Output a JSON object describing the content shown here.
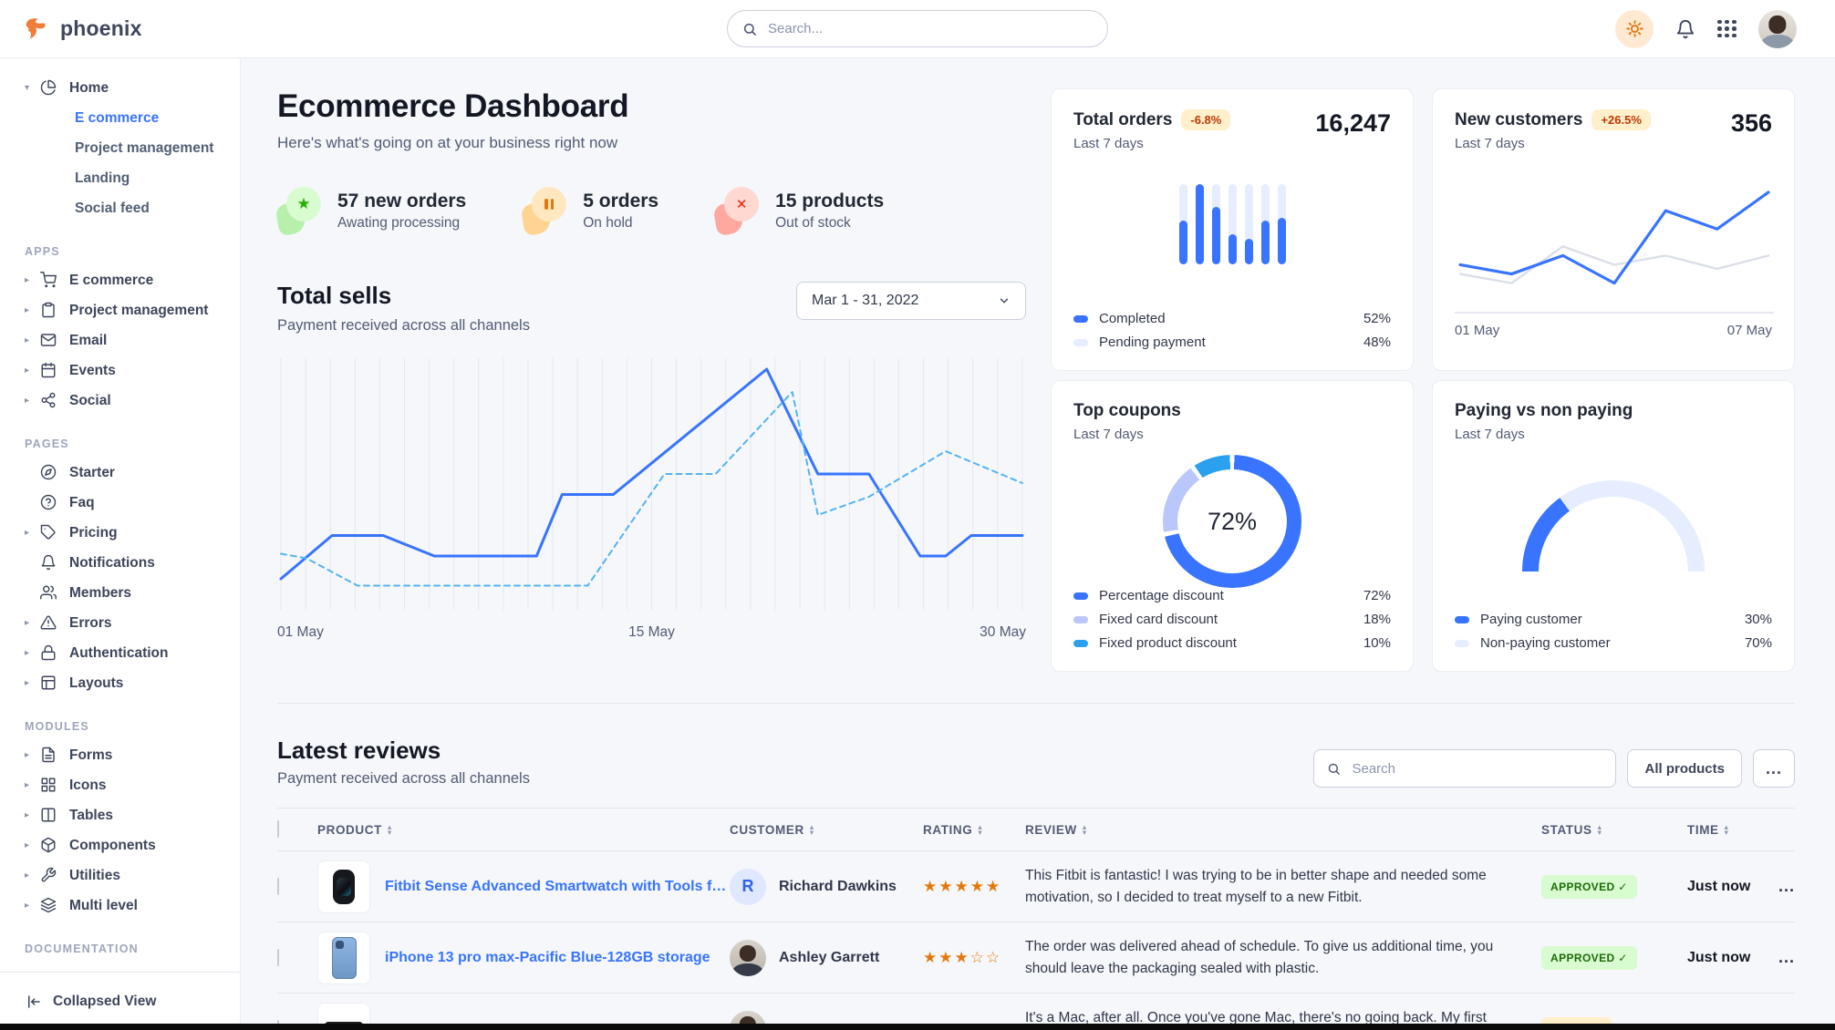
{
  "navbar": {
    "brand": "phoenix",
    "search_placeholder": "Search..."
  },
  "sidebar": {
    "footer_label": "Collapsed View",
    "sections": [
      {
        "label": "",
        "items": [
          {
            "label": "Home",
            "icon": "pie-chart",
            "caret": "down",
            "children": [
              {
                "label": "E commerce",
                "active": true
              },
              {
                "label": "Project management",
                "active": false
              },
              {
                "label": "Landing",
                "active": false
              },
              {
                "label": "Social feed",
                "active": false
              }
            ]
          }
        ]
      },
      {
        "label": "APPS",
        "items": [
          {
            "label": "E commerce",
            "icon": "shopping-cart",
            "caret": "right"
          },
          {
            "label": "Project management",
            "icon": "clipboard",
            "caret": "right"
          },
          {
            "label": "Email",
            "icon": "mail",
            "caret": "right"
          },
          {
            "label": "Events",
            "icon": "calendar",
            "caret": "right"
          },
          {
            "label": "Social",
            "icon": "share-2",
            "caret": "right"
          }
        ]
      },
      {
        "label": "PAGES",
        "items": [
          {
            "label": "Starter",
            "icon": "compass"
          },
          {
            "label": "Faq",
            "icon": "help-circle"
          },
          {
            "label": "Pricing",
            "icon": "tag",
            "caret": "right"
          },
          {
            "label": "Notifications",
            "icon": "bell"
          },
          {
            "label": "Members",
            "icon": "users"
          },
          {
            "label": "Errors",
            "icon": "alert-triangle",
            "caret": "right"
          },
          {
            "label": "Authentication",
            "icon": "lock",
            "caret": "right"
          },
          {
            "label": "Layouts",
            "icon": "layout",
            "caret": "right"
          }
        ]
      },
      {
        "label": "MODULES",
        "items": [
          {
            "label": "Forms",
            "icon": "file-text",
            "caret": "right"
          },
          {
            "label": "Icons",
            "icon": "grid",
            "caret": "right"
          },
          {
            "label": "Tables",
            "icon": "columns",
            "caret": "right"
          },
          {
            "label": "Components",
            "icon": "package",
            "caret": "right"
          },
          {
            "label": "Utilities",
            "icon": "tool",
            "caret": "right"
          },
          {
            "label": "Multi level",
            "icon": "layers",
            "caret": "right"
          }
        ]
      },
      {
        "label": "DOCUMENTATION",
        "items": []
      }
    ]
  },
  "page": {
    "title": "Ecommerce Dashboard",
    "subtitle": "Here's what's going on at your business right now"
  },
  "stats": [
    {
      "title": "57 new orders",
      "subtitle": "Awating processing",
      "icon": "star",
      "tone": "success"
    },
    {
      "title": "5 orders",
      "subtitle": "On hold",
      "icon": "pause",
      "tone": "warning"
    },
    {
      "title": "15 products",
      "subtitle": "Out of stock",
      "icon": "x",
      "tone": "danger"
    }
  ],
  "total_sells": {
    "title": "Total sells",
    "subtitle": "Payment received across all channels",
    "date_range": "Mar 1 - 31, 2022"
  },
  "cards": {
    "total_orders": {
      "title": "Total orders",
      "badge": "-6.8%",
      "period": "Last 7 days",
      "value": "16,247"
    },
    "new_customers": {
      "title": "New customers",
      "badge": "+26.5%",
      "period": "Last 7 days",
      "value": "356"
    },
    "top_coupons": {
      "title": "Top coupons",
      "period": "Last 7 days"
    },
    "paying": {
      "title": "Paying vs non paying",
      "period": "Last 7 days"
    }
  },
  "reviews": {
    "title": "Latest reviews",
    "subtitle": "Payment received across all channels",
    "search_placeholder": "Search",
    "filter_label": "All products",
    "more_label": "...",
    "columns": {
      "product": "PRODUCT",
      "customer": "CUSTOMER",
      "rating": "RATING",
      "review": "REVIEW",
      "status": "STATUS",
      "time": "TIME"
    },
    "rows": [
      {
        "product": "Fitbit Sense Advanced Smartwatch with Tools fo...",
        "thumb": "watch",
        "customer": "Richard Dawkins",
        "avatar": "initial",
        "initial": "R",
        "rating": 5,
        "review": "This Fitbit is fantastic! I was trying to be in better shape and needed some motivation, so I decided to treat myself to a new Fitbit.",
        "status": "APPROVED",
        "status_tone": "success",
        "time": "Just now"
      },
      {
        "product": "iPhone 13 pro max-Pacific Blue-128GB storage",
        "thumb": "phone",
        "customer": "Ashley Garrett",
        "avatar": "photo",
        "initial": "",
        "rating": 3,
        "review": "The order was delivered ahead of schedule. To give us additional time, you should leave the packaging sealed with plastic.",
        "status": "APPROVED",
        "status_tone": "success",
        "time": "Just now"
      },
      {
        "product": "",
        "thumb": "laptop",
        "customer": "",
        "avatar": "photo2",
        "initial": "",
        "rating": null,
        "review": "It's a Mac, after all. Once you've gone Mac, there's no going back. My first Mac lasted...",
        "status": "PENDING",
        "status_tone": "warning",
        "time": ""
      }
    ]
  },
  "chart_data": [
    {
      "id": "total-sells",
      "type": "line",
      "title": "Total sells",
      "x_axis": {
        "min": 1,
        "max": 30,
        "tick_labels": [
          "01 May",
          "15 May",
          "30 May"
        ]
      },
      "ylim": [
        0,
        100
      ],
      "grid": "vertical",
      "gridlines": 30,
      "series": [
        {
          "name": "current",
          "style": "solid",
          "color": "#3874ff",
          "points": [
            [
              1,
              8
            ],
            [
              3,
              27
            ],
            [
              5,
              27
            ],
            [
              7,
              18
            ],
            [
              11,
              18
            ],
            [
              12,
              45
            ],
            [
              14,
              45
            ],
            [
              20,
              100
            ],
            [
              22,
              54
            ],
            [
              24,
              54
            ],
            [
              26,
              18
            ],
            [
              27,
              18
            ],
            [
              28,
              27
            ],
            [
              30,
              27
            ]
          ]
        },
        {
          "name": "previous",
          "style": "dashed",
          "color": "#54b4f2",
          "points": [
            [
              1,
              19
            ],
            [
              2,
              17
            ],
            [
              4,
              5
            ],
            [
              13,
              5
            ],
            [
              16,
              54
            ],
            [
              18,
              54
            ],
            [
              21,
              90
            ],
            [
              22,
              36
            ],
            [
              24,
              44
            ],
            [
              27,
              64
            ],
            [
              30,
              50
            ]
          ]
        }
      ]
    },
    {
      "id": "total-orders",
      "type": "bar",
      "categories": [
        "1",
        "2",
        "3",
        "4",
        "5",
        "6",
        "7"
      ],
      "values": [
        55,
        100,
        72,
        38,
        32,
        55,
        58
      ],
      "ylim": [
        0,
        100
      ],
      "colors": {
        "fill": "#3874ff",
        "track": "#e5edff"
      },
      "legend": [
        {
          "label": "Completed",
          "value": "52%",
          "color": "#3874ff"
        },
        {
          "label": "Pending payment",
          "value": "48%",
          "color": "#e5edff"
        }
      ]
    },
    {
      "id": "new-customers",
      "type": "line",
      "x_axis": {
        "tick_labels": [
          "01 May",
          "07 May"
        ]
      },
      "ylim": [
        0,
        100
      ],
      "series": [
        {
          "name": "previous",
          "color": "#dbdfe8",
          "values": [
            12,
            3,
            39,
            21,
            30,
            17,
            30
          ]
        },
        {
          "name": "current",
          "color": "#3874ff",
          "values": [
            21,
            12,
            30,
            3,
            74,
            56,
            92
          ]
        }
      ]
    },
    {
      "id": "top-coupons",
      "type": "donut",
      "center_label": "72%",
      "slices": [
        {
          "label": "Percentage discount",
          "value": 72,
          "display": "72%",
          "color": "#3874ff"
        },
        {
          "label": "Fixed card discount",
          "value": 18,
          "display": "18%",
          "color": "#bac7fb"
        },
        {
          "label": "Fixed product discount",
          "value": 10,
          "display": "10%",
          "color": "#2ba0ef"
        }
      ]
    },
    {
      "id": "paying-gauge",
      "type": "gauge",
      "slices": [
        {
          "label": "Paying customer",
          "value": 30,
          "display": "30%",
          "color": "#3874ff"
        },
        {
          "label": "Non-paying customer",
          "value": 70,
          "display": "70%",
          "color": "#e5edff"
        }
      ]
    }
  ]
}
